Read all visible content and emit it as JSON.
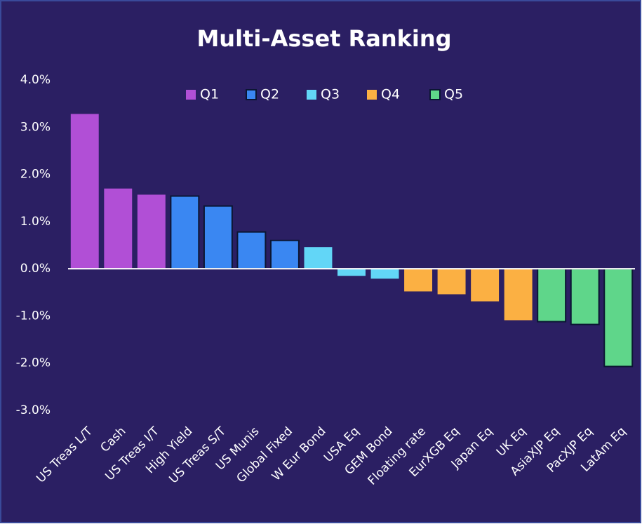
{
  "chart_data": {
    "type": "bar",
    "title": "Multi-Asset Ranking",
    "categories": [
      "US Treas L/T",
      "Cash",
      "US Treas I/T",
      "High Yield",
      "US Treas S/T",
      "US Munis",
      "Global Fixed",
      "W Eur Bond",
      "USA Eq",
      "GEM Bond",
      "Floating rate",
      "EurXGB Eq",
      "Japan Eq",
      "UK Eq",
      "AsiaXJP Eq",
      "PacXJP Eq",
      "LatAm Eq"
    ],
    "series": [
      {
        "name": "Q1",
        "color": "#b14fd6",
        "values": [
          3.28,
          1.7,
          1.57,
          null,
          null,
          null,
          null,
          null,
          null,
          null,
          null,
          null,
          null,
          null,
          null,
          null,
          null
        ]
      },
      {
        "name": "Q2",
        "color": "#3a87f2",
        "edgecolor": "#0b1633",
        "values": [
          null,
          null,
          null,
          1.54,
          1.33,
          0.78,
          0.6,
          null,
          null,
          null,
          null,
          null,
          null,
          null,
          null,
          null,
          null
        ]
      },
      {
        "name": "Q3",
        "color": "#62d6f7",
        "values": [
          null,
          null,
          null,
          null,
          null,
          null,
          null,
          0.46,
          -0.15,
          -0.21,
          null,
          null,
          null,
          null,
          null,
          null,
          null
        ]
      },
      {
        "name": "Q4",
        "color": "#fbb043",
        "values": [
          null,
          null,
          null,
          null,
          null,
          null,
          null,
          null,
          null,
          null,
          -0.48,
          -0.54,
          -0.69,
          -1.09,
          null,
          null,
          null
        ]
      },
      {
        "name": "Q5",
        "color": "#5fd68a",
        "edgecolor": "#0b1633",
        "values": [
          null,
          null,
          null,
          null,
          null,
          null,
          null,
          null,
          null,
          null,
          null,
          null,
          null,
          null,
          -1.12,
          -1.18,
          -2.07
        ]
      }
    ],
    "ylim": [
      -3,
      4
    ],
    "yticks": [
      {
        "value": -3,
        "label": "-3.0%"
      },
      {
        "value": -2,
        "label": "-2.0%"
      },
      {
        "value": -1,
        "label": "-1.0%"
      },
      {
        "value": 0,
        "label": "0.0%"
      },
      {
        "value": 1,
        "label": "1.0%"
      },
      {
        "value": 2,
        "label": "2.0%"
      },
      {
        "value": 3,
        "label": "3.0%"
      },
      {
        "value": 4,
        "label": "4.0%"
      }
    ],
    "grid": false,
    "legend": "top"
  }
}
